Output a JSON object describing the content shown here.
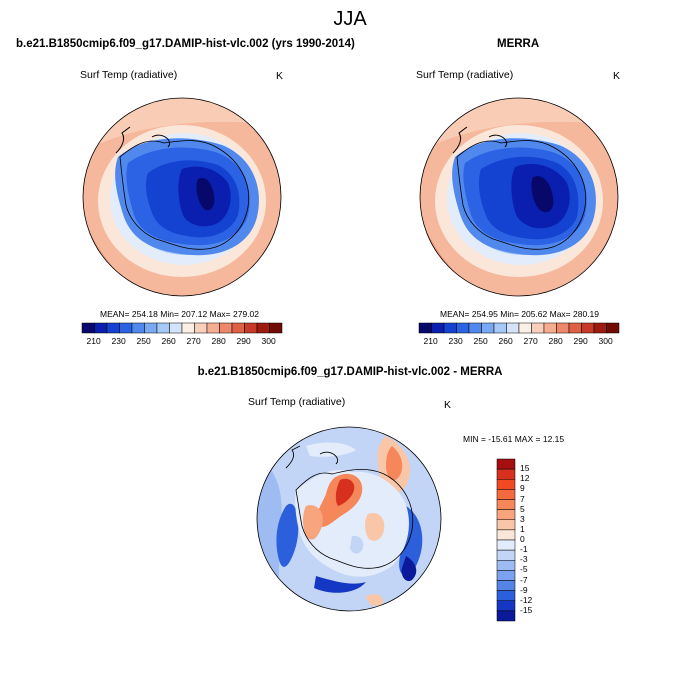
{
  "title": "JJA",
  "scale_colors": [
    "#08086b",
    "#0a1fb0",
    "#1443d2",
    "#2c62e4",
    "#5088ee",
    "#7aa9f3",
    "#a6c8f7",
    "#d3e3fa",
    "#fbefe6",
    "#f9d0bc",
    "#f5ad92",
    "#ef876a",
    "#e06046",
    "#c53a28",
    "#9d1b10",
    "#6f0a05"
  ],
  "panels": [
    {
      "id": "model",
      "title": "b.e21.B1850cmip6.f09_g17.DAMIP-hist-vlc.002 (yrs 1990-2014)",
      "variable": "Surf Temp (radiative)",
      "units": "K",
      "stats_text": "MEAN= 254.18   Min= 207.12   Max= 279.02",
      "colorbar_labels": [
        "210",
        "230",
        "250",
        "260",
        "270",
        "280",
        "290",
        "300"
      ]
    },
    {
      "id": "obs",
      "title": "MERRA",
      "variable": "Surf Temp (radiative)",
      "units": "K",
      "stats_text": "MEAN= 254.95   Min= 205.62   Max= 280.19",
      "colorbar_labels": [
        "210",
        "230",
        "250",
        "260",
        "270",
        "280",
        "290",
        "300"
      ]
    },
    {
      "id": "diff",
      "title": "b.e21.B1850cmip6.f09_g17.DAMIP-hist-vlc.002 - MERRA",
      "variable": "Surf Temp (radiative)",
      "units": "K",
      "stats_text": "MIN = -15.61  MAX =  12.15",
      "colorbar_labels": [
        "15",
        "12",
        "9",
        "7",
        "5",
        "3",
        "1",
        "0",
        "-1",
        "-3",
        "-5",
        "-7",
        "-9",
        "-12",
        "-15"
      ]
    }
  ],
  "diff_colors": [
    "#a50f0f",
    "#d7301f",
    "#ef4a22",
    "#f46a3c",
    "#f6875a",
    "#f8a47d",
    "#f9c6a8",
    "#fbe6da",
    "#e3ecfa",
    "#c3d5f6",
    "#9ebcf2",
    "#7ba2ee",
    "#5484e6",
    "#2c5fdb",
    "#1438c4",
    "#0a1a9a"
  ],
  "chart_data": [
    {
      "type": "heatmap",
      "title": "b.e21.B1850cmip6.f09_g17.DAMIP-hist-vlc.002 (yrs 1990-2014)",
      "variable": "Surf Temp (radiative)",
      "units": "K",
      "projection": "south polar stereographic",
      "stats": {
        "mean": 254.18,
        "min": 207.12,
        "max": 279.02
      },
      "contour_levels": [
        210,
        220,
        230,
        240,
        250,
        255,
        260,
        265,
        270,
        275,
        280,
        285,
        290,
        295,
        300
      ]
    },
    {
      "type": "heatmap",
      "title": "MERRA",
      "variable": "Surf Temp (radiative)",
      "units": "K",
      "projection": "south polar stereographic",
      "stats": {
        "mean": 254.95,
        "min": 205.62,
        "max": 280.19
      },
      "contour_levels": [
        210,
        220,
        230,
        240,
        250,
        255,
        260,
        265,
        270,
        275,
        280,
        285,
        290,
        295,
        300
      ]
    },
    {
      "type": "heatmap",
      "title": "b.e21.B1850cmip6.f09_g17.DAMIP-hist-vlc.002 - MERRA",
      "variable": "Surf Temp (radiative)",
      "units": "K",
      "projection": "south polar stereographic",
      "stats": {
        "min": -15.61,
        "max": 12.15
      },
      "contour_levels": [
        -15,
        -12,
        -9,
        -7,
        -5,
        -3,
        -1,
        0,
        1,
        3,
        5,
        7,
        9,
        12,
        15
      ]
    }
  ]
}
